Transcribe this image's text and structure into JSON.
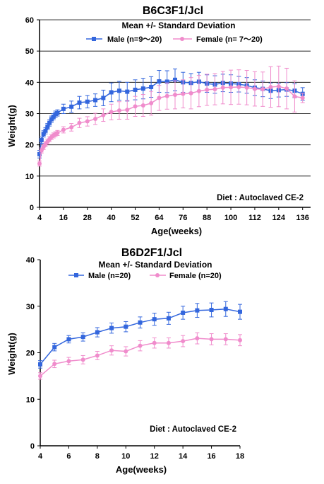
{
  "chart_data": [
    {
      "type": "line",
      "title": "B6C3F1/Jcl",
      "subtitle": "Mean +/- Standard Deviation",
      "xlabel": "Age(weeks)",
      "ylabel": "Weight(g)",
      "xlim": [
        4,
        140
      ],
      "ylim": [
        0,
        60
      ],
      "xticks": [
        4,
        16,
        28,
        40,
        52,
        64,
        76,
        88,
        100,
        112,
        124,
        136
      ],
      "yticks": [
        0,
        10,
        20,
        30,
        40,
        50,
        60
      ],
      "grid": "horizontal",
      "legend_position": "top",
      "note": "Diet : Autoclaved CE-2",
      "series": [
        {
          "name": "Male (n=9〜20)",
          "color": "#3366dd",
          "marker": "square",
          "x": [
            4,
            5,
            6,
            7,
            8,
            9,
            10,
            11,
            12,
            13,
            16,
            20,
            24,
            28,
            32,
            36,
            40,
            44,
            48,
            52,
            56,
            60,
            64,
            68,
            72,
            76,
            80,
            84,
            88,
            92,
            96,
            100,
            104,
            108,
            112,
            116,
            120,
            124,
            128,
            132,
            136
          ],
          "y": [
            17,
            21.5,
            23.5,
            24.5,
            25.8,
            27,
            28.2,
            29,
            29.8,
            30.2,
            31.5,
            32.2,
            33.5,
            33.8,
            34.3,
            35,
            36.8,
            37.3,
            37,
            37.6,
            38,
            38.5,
            40.3,
            40.2,
            40.8,
            40,
            39.8,
            40.2,
            39.6,
            39.3,
            39.8,
            39.6,
            39.4,
            39,
            38.3,
            37.9,
            37.3,
            37.5,
            37.7,
            37.3,
            36.3
          ],
          "sd": [
            1.2,
            1,
            1,
            1,
            1,
            1,
            1,
            1,
            1,
            1,
            1.5,
            1.8,
            2,
            2,
            2,
            2.5,
            3,
            3,
            3,
            3.2,
            3.3,
            3.3,
            3.5,
            3.5,
            3.5,
            3.2,
            3,
            3,
            2.8,
            2.8,
            2.8,
            2.8,
            2.5,
            2.5,
            2.5,
            2.5,
            2.5,
            2.2,
            2.2,
            2.2,
            2
          ]
        },
        {
          "name": "Female (n= 7〜20)",
          "color": "#f08ccc",
          "marker": "circle",
          "x": [
            4,
            5,
            6,
            7,
            8,
            9,
            10,
            11,
            12,
            13,
            16,
            20,
            24,
            28,
            32,
            36,
            40,
            44,
            48,
            52,
            56,
            60,
            64,
            68,
            72,
            76,
            80,
            84,
            88,
            92,
            96,
            100,
            104,
            108,
            112,
            116,
            120,
            124,
            128,
            132,
            136
          ],
          "y": [
            14,
            18.2,
            19.3,
            20.2,
            21,
            21.8,
            22.5,
            23,
            23.4,
            23.8,
            24.8,
            25.6,
            27,
            27.5,
            28.3,
            29.5,
            30.5,
            31,
            31.2,
            32.3,
            32.6,
            33.3,
            35,
            35.6,
            36,
            36.3,
            36.5,
            37.2,
            37.6,
            37.8,
            38.3,
            38.4,
            38.5,
            38.3,
            37.9,
            37.8,
            38.5,
            38.7,
            38,
            35.5,
            35
          ],
          "sd": [
            0.8,
            0.8,
            0.8,
            0.8,
            0.8,
            0.8,
            0.8,
            0.8,
            0.8,
            0.8,
            1,
            1.2,
            1.5,
            1.5,
            1.8,
            2,
            2.5,
            2.8,
            3,
            3.2,
            3.5,
            3.8,
            4,
            4.2,
            4.5,
            4.5,
            5,
            5,
            5,
            5,
            5.2,
            5.5,
            5.5,
            5.5,
            5.5,
            5.5,
            6.5,
            6.5,
            6.5,
            5,
            1.5
          ]
        }
      ]
    },
    {
      "type": "line",
      "title": "B6D2F1/Jcl",
      "subtitle": "Mean +/- Standard Deviation",
      "xlabel": "Age(weeks)",
      "ylabel": "Weight(g)",
      "xlim": [
        4,
        18
      ],
      "ylim": [
        0,
        40
      ],
      "xticks": [
        4,
        6,
        8,
        10,
        12,
        14,
        16,
        18
      ],
      "yticks": [
        0,
        10,
        20,
        30,
        40
      ],
      "grid": "none",
      "legend_position": "top",
      "note": "Diet : Autoclaved CE-2",
      "series": [
        {
          "name": "Male (n=20)",
          "color": "#3366dd",
          "marker": "square",
          "x": [
            4,
            5,
            6,
            7,
            8,
            9,
            10,
            11,
            12,
            13,
            14,
            15,
            16,
            17,
            18
          ],
          "y": [
            17.5,
            21.2,
            22.9,
            23.4,
            24.4,
            25.3,
            25.6,
            26.5,
            27.2,
            27.4,
            28.6,
            29.1,
            29.2,
            29.4,
            28.8
          ],
          "sd": [
            0.8,
            0.8,
            0.8,
            0.9,
            1,
            1.1,
            1.1,
            1.2,
            1.3,
            1.3,
            1.4,
            1.5,
            1.5,
            1.6,
            1.6
          ]
        },
        {
          "name": "Female (n=20)",
          "color": "#f08ccc",
          "marker": "circle",
          "x": [
            4,
            5,
            6,
            7,
            8,
            9,
            10,
            11,
            12,
            13,
            14,
            15,
            16,
            17,
            18
          ],
          "y": [
            15,
            17.6,
            18.2,
            18.5,
            19.4,
            20.5,
            20.3,
            21.5,
            22.1,
            22.1,
            22.5,
            23.1,
            22.9,
            22.9,
            22.7
          ],
          "sd": [
            0.7,
            0.8,
            0.8,
            0.9,
            0.9,
            1,
            1,
            1.1,
            1.1,
            1.1,
            1.2,
            1.2,
            1.2,
            1.2,
            1.2
          ]
        }
      ]
    }
  ]
}
